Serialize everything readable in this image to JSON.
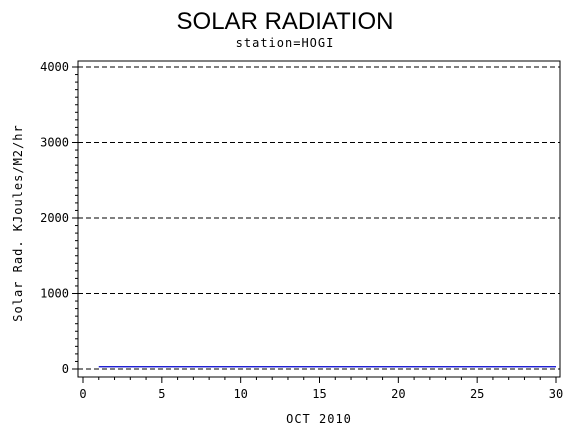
{
  "chart_data": {
    "type": "line",
    "title": "SOLAR RADIATION",
    "subtitle": "station=HOGI",
    "xlabel": "OCT 2010",
    "ylabel": "Solar Rad. KJoules/M2/hr",
    "xlim": [
      0,
      30
    ],
    "ylim": [
      0,
      4000
    ],
    "x_ticks": [
      0,
      5,
      10,
      15,
      20,
      25,
      30
    ],
    "y_ticks": [
      0,
      1000,
      2000,
      3000,
      4000
    ],
    "grid": "horizontal-dashed",
    "series": [
      {
        "color": "#0000cc",
        "x": [
          1,
          30
        ],
        "y": [
          30,
          30
        ]
      }
    ]
  }
}
